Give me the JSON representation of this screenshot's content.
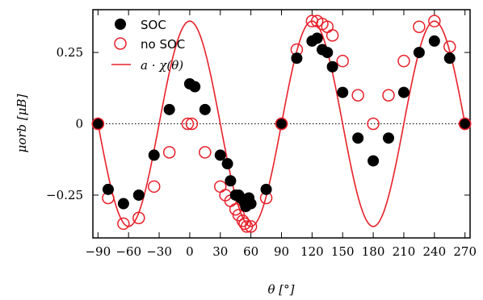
{
  "chart_data": {
    "type": "scatter",
    "xlabel": "θ [°]",
    "ylabel": "μorb [μB]",
    "xlim": [
      -95,
      275
    ],
    "ylim": [
      -0.4,
      0.4
    ],
    "xticks": [
      -90,
      -60,
      -30,
      0,
      30,
      60,
      90,
      120,
      150,
      180,
      210,
      240,
      270
    ],
    "xtick_labels": [
      "−90",
      "−60",
      "−30",
      "0",
      "30",
      "60",
      "90",
      "120",
      "150",
      "180",
      "210",
      "240",
      "270"
    ],
    "yticks": [
      -0.25,
      0,
      0.25
    ],
    "ytick_labels": [
      "−0.25",
      "0",
      "0.25"
    ],
    "legend_position": "top-left",
    "zero_line": "dotted",
    "colors": {
      "soc": "#000000",
      "nosoc": "#e8202a",
      "fit": "#e8202a"
    },
    "series": [
      {
        "name": "SOC",
        "marker": "filled-circle",
        "x": [
          -90,
          -80,
          -65,
          -50,
          -35,
          -20,
          0,
          5,
          15,
          30,
          37,
          40,
          45,
          48,
          50,
          53,
          55,
          58,
          60,
          75,
          90,
          105,
          120,
          125,
          130,
          135,
          140,
          150,
          165,
          180,
          195,
          210,
          225,
          240,
          255,
          270
        ],
        "y": [
          0.0,
          -0.23,
          -0.28,
          -0.25,
          -0.11,
          0.05,
          0.14,
          0.13,
          0.05,
          -0.11,
          -0.14,
          -0.2,
          -0.25,
          -0.25,
          -0.26,
          -0.27,
          -0.29,
          -0.26,
          -0.28,
          -0.23,
          0.0,
          0.23,
          0.29,
          0.3,
          0.26,
          0.25,
          0.2,
          0.11,
          -0.05,
          -0.13,
          -0.05,
          0.11,
          0.25,
          0.29,
          0.23,
          0.0
        ]
      },
      {
        "name": "no SOC",
        "marker": "open-circle",
        "x": [
          -90,
          -80,
          -65,
          -50,
          -35,
          -20,
          -2,
          2,
          15,
          30,
          35,
          40,
          45,
          48,
          52,
          54,
          56,
          60,
          75,
          90,
          105,
          120,
          125,
          130,
          135,
          140,
          150,
          165,
          180,
          195,
          210,
          225,
          240,
          255,
          270
        ],
        "y": [
          0.0,
          -0.26,
          -0.35,
          -0.33,
          -0.22,
          -0.1,
          0.0,
          0.0,
          -0.1,
          -0.22,
          -0.25,
          -0.27,
          -0.3,
          -0.32,
          -0.34,
          -0.35,
          -0.36,
          -0.36,
          -0.26,
          0.0,
          0.26,
          0.36,
          0.36,
          0.35,
          0.34,
          0.31,
          0.22,
          0.1,
          0.0,
          0.1,
          0.22,
          0.34,
          0.36,
          0.27,
          0.0
        ]
      },
      {
        "name": "a · χ(θ)",
        "marker": "line",
        "amplitude": 0.36,
        "period_deg": 120
      }
    ]
  }
}
